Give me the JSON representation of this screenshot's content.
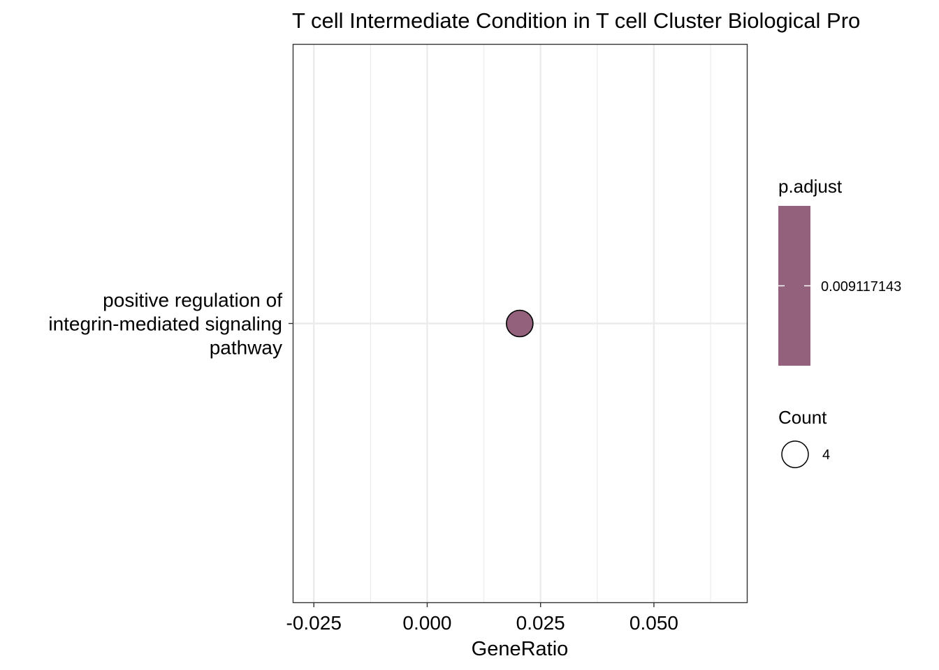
{
  "chart_data": {
    "type": "scatter",
    "title": "T cell Intermediate Condition in T cell Cluster Biological Pro",
    "xlabel": "GeneRatio",
    "ylabel": "",
    "xlim": [
      -0.0295,
      0.0705
    ],
    "x_ticks": [
      -0.025,
      0.0,
      0.025,
      0.05
    ],
    "x_tick_labels": [
      "-0.025",
      "0.000",
      "0.025",
      "0.050"
    ],
    "x_minor_ticks": [
      -0.0125,
      0.0125,
      0.0375,
      0.0625
    ],
    "categories": [
      "positive regulation of\nintegrin-mediated signaling\npathway"
    ],
    "points": [
      {
        "category_index": 0,
        "x": 0.0204,
        "count": 4,
        "p_adjust": 0.009117143,
        "color": "#93617B"
      }
    ],
    "grid": true,
    "legend_position": "right",
    "legend": {
      "color_title": "p.adjust",
      "color_value_label": "0.009117143",
      "color": "#93617B",
      "size_title": "Count",
      "size_value_label": "4"
    }
  }
}
